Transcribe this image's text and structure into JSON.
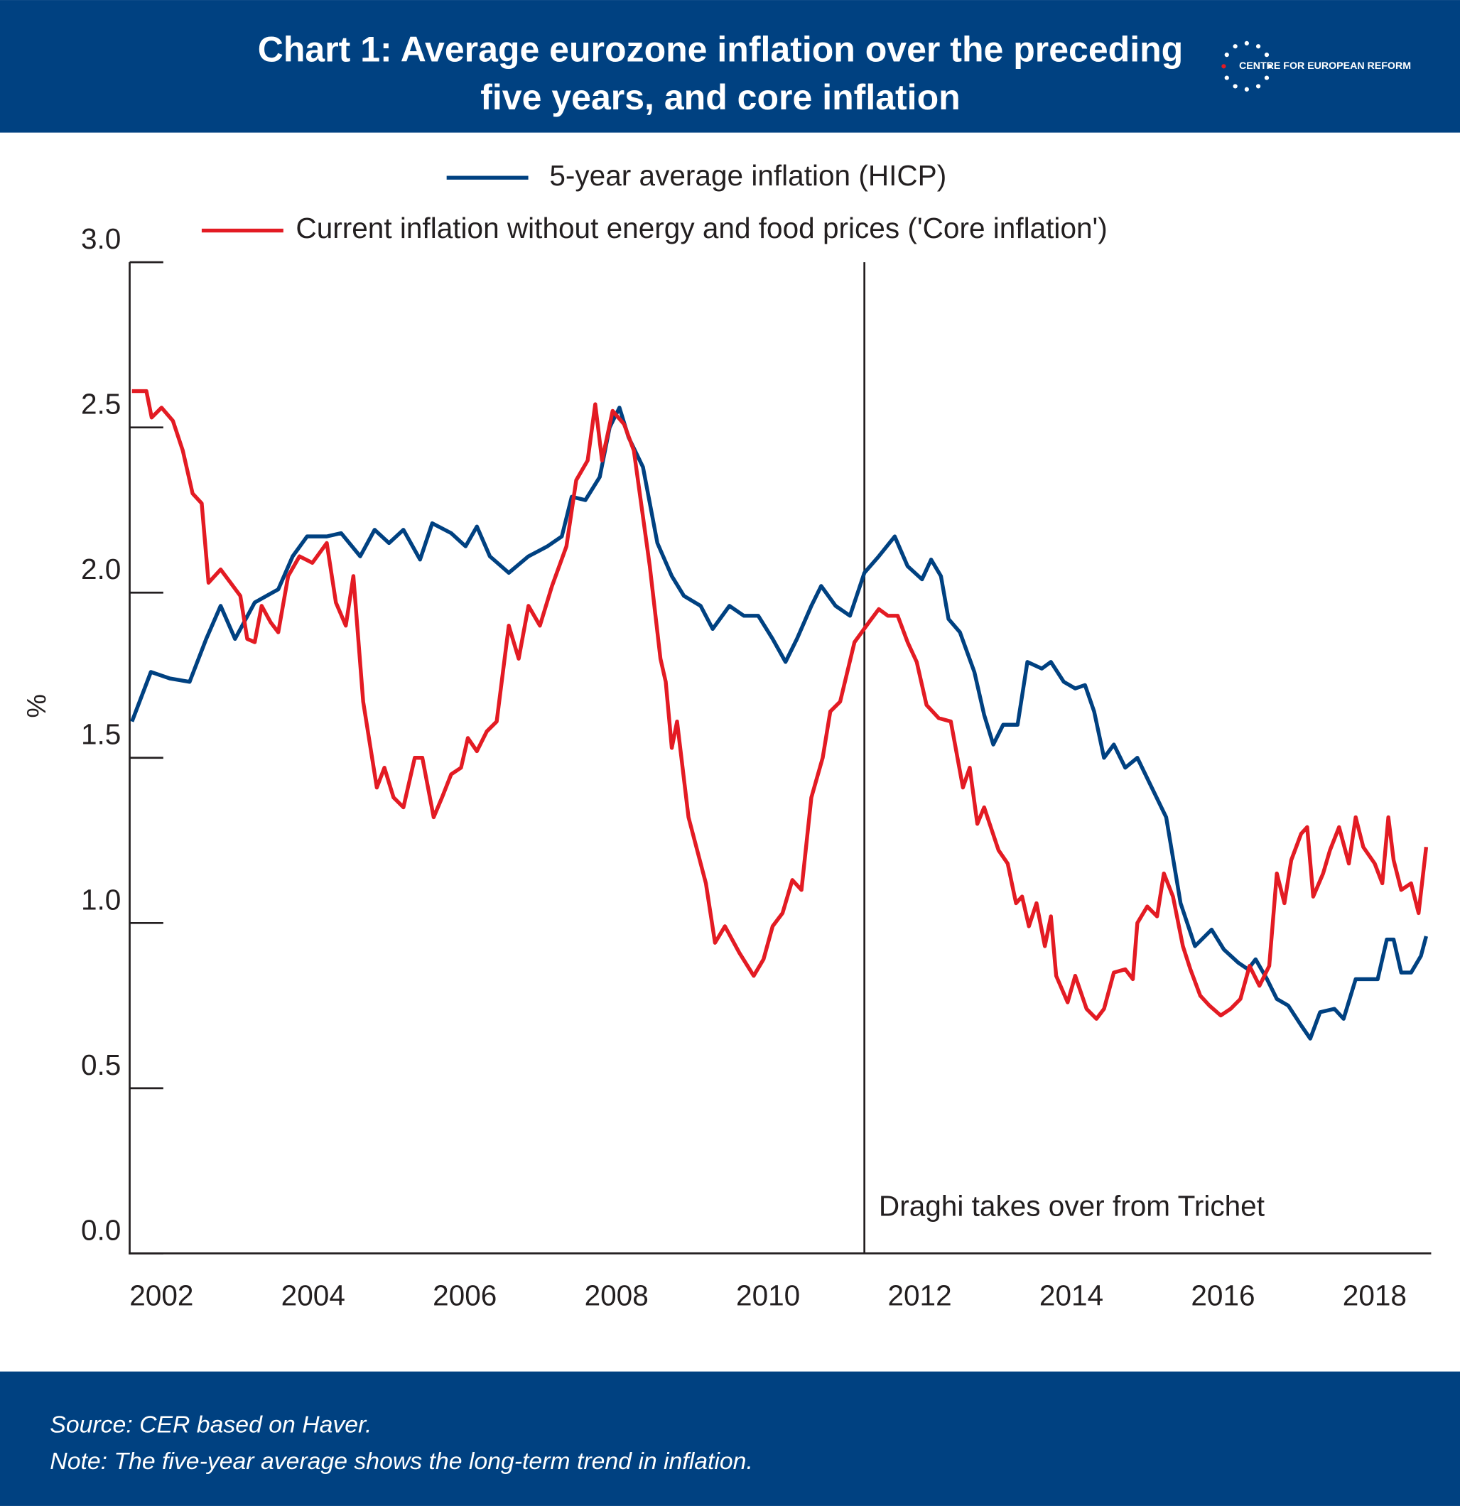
{
  "chart_data": {
    "type": "line",
    "title": [
      "Chart 1: Average eurozone inflation over the preceding",
      "five years, and core inflation"
    ],
    "logo": "CENTRE FOR EUROPEAN REFORM",
    "y_label": "%",
    "source": "Source:  CER based on Haver.",
    "note": "Note: The five-year average shows the long-term trend in inflation.",
    "annotation": {
      "text": "Draghi takes over from Trichet",
      "x": 2011.27
    },
    "xlim": [
      2001.58,
      2018.72
    ],
    "xticks": [
      2002,
      2004,
      2006,
      2008,
      2010,
      2012,
      2014,
      2016,
      2018
    ],
    "ylim": [
      0,
      3
    ],
    "yticks": [
      {
        "value": 0,
        "label": "0.0"
      },
      0.5,
      {
        "value": 1,
        "label": "1.0"
      },
      1.5,
      {
        "value": 2,
        "label": "2.0"
      },
      2.5,
      {
        "value": 3,
        "label": "3.0"
      }
    ],
    "series": [
      {
        "name": "5-year average inflation (HICP)",
        "color": "#004181",
        "x": [
          2001.61,
          2001.86,
          2002.11,
          2002.37,
          2002.59,
          2002.78,
          2002.97,
          2003.23,
          2003.54,
          2003.73,
          2003.92,
          2004.18,
          2004.37,
          2004.62,
          2004.81,
          2005.0,
          2005.19,
          2005.41,
          2005.57,
          2005.82,
          2006.01,
          2006.16,
          2006.33,
          2006.58,
          2006.84,
          2007.09,
          2007.28,
          2007.41,
          2007.59,
          2007.78,
          2007.91,
          2008.04,
          2008.16,
          2008.35,
          2008.54,
          2008.73,
          2008.89,
          2009.11,
          2009.27,
          2009.49,
          2009.68,
          2009.87,
          2010.06,
          2010.23,
          2010.38,
          2010.57,
          2010.7,
          2010.89,
          2011.08,
          2011.27,
          2011.46,
          2011.67,
          2011.84,
          2012.03,
          2012.15,
          2012.28,
          2012.38,
          2012.53,
          2012.72,
          2012.85,
          2012.97,
          2013.1,
          2013.29,
          2013.42,
          2013.61,
          2013.73,
          2013.9,
          2014.05,
          2014.18,
          2014.3,
          2014.43,
          2014.56,
          2014.71,
          2014.87,
          2015.06,
          2015.25,
          2015.44,
          2015.63,
          2015.85,
          2016.01,
          2016.2,
          2016.33,
          2016.43,
          2016.58,
          2016.71,
          2016.86,
          2017.03,
          2017.15,
          2017.28,
          2017.47,
          2017.59,
          2017.75,
          2017.91,
          2018.04,
          2018.16,
          2018.25,
          2018.35,
          2018.48,
          2018.61,
          2018.68
        ],
        "values": [
          1.61,
          1.76,
          1.74,
          1.73,
          1.86,
          1.96,
          1.86,
          1.97,
          2.01,
          2.11,
          2.17,
          2.17,
          2.18,
          2.11,
          2.19,
          2.15,
          2.19,
          2.1,
          2.21,
          2.18,
          2.14,
          2.2,
          2.11,
          2.06,
          2.11,
          2.14,
          2.17,
          2.29,
          2.28,
          2.35,
          2.5,
          2.56,
          2.47,
          2.38,
          2.15,
          2.05,
          1.99,
          1.96,
          1.89,
          1.96,
          1.93,
          1.93,
          1.86,
          1.79,
          1.86,
          1.96,
          2.02,
          1.96,
          1.93,
          2.06,
          2.11,
          2.17,
          2.08,
          2.04,
          2.1,
          2.05,
          1.92,
          1.88,
          1.76,
          1.63,
          1.54,
          1.6,
          1.6,
          1.79,
          1.77,
          1.79,
          1.73,
          1.71,
          1.72,
          1.64,
          1.5,
          1.54,
          1.47,
          1.5,
          1.41,
          1.32,
          1.06,
          0.93,
          0.98,
          0.92,
          0.88,
          0.86,
          0.89,
          0.83,
          0.77,
          0.75,
          0.69,
          0.65,
          0.73,
          0.74,
          0.71,
          0.83,
          0.83,
          0.83,
          0.95,
          0.95,
          0.85,
          0.85,
          0.9,
          0.96
        ]
      },
      {
        "name": "Current inflation without energy and food prices ('Core inflation')",
        "color": "#e31b23",
        "x": [
          2001.61,
          2001.8,
          2001.87,
          2002.0,
          2002.15,
          2002.28,
          2002.41,
          2002.53,
          2002.62,
          2002.78,
          2002.91,
          2003.04,
          2003.13,
          2003.23,
          2003.32,
          2003.44,
          2003.54,
          2003.67,
          2003.82,
          2003.99,
          2004.18,
          2004.3,
          2004.43,
          2004.53,
          2004.66,
          2004.84,
          2004.94,
          2005.06,
          2005.19,
          2005.34,
          2005.44,
          2005.59,
          2005.7,
          2005.82,
          2005.95,
          2006.04,
          2006.16,
          2006.29,
          2006.42,
          2006.58,
          2006.71,
          2006.84,
          2006.99,
          2007.15,
          2007.34,
          2007.47,
          2007.62,
          2007.72,
          2007.81,
          2007.95,
          2008.1,
          2008.23,
          2008.44,
          2008.58,
          2008.65,
          2008.73,
          2008.8,
          2008.95,
          2009.18,
          2009.3,
          2009.43,
          2009.62,
          2009.81,
          2009.94,
          2010.06,
          2010.19,
          2010.32,
          2010.44,
          2010.57,
          2010.72,
          2010.82,
          2010.95,
          2011.14,
          2011.33,
          2011.46,
          2011.58,
          2011.71,
          2011.84,
          2011.96,
          2012.09,
          2012.25,
          2012.41,
          2012.57,
          2012.66,
          2012.76,
          2012.85,
          2013.04,
          2013.16,
          2013.27,
          2013.35,
          2013.44,
          2013.54,
          2013.65,
          2013.73,
          2013.8,
          2013.95,
          2014.05,
          2014.2,
          2014.33,
          2014.43,
          2014.56,
          2014.71,
          2014.81,
          2014.87,
          2015.0,
          2015.13,
          2015.22,
          2015.34,
          2015.47,
          2015.57,
          2015.7,
          2015.82,
          2015.97,
          2016.1,
          2016.23,
          2016.35,
          2016.48,
          2016.61,
          2016.71,
          2016.81,
          2016.9,
          2017.03,
          2017.11,
          2017.19,
          2017.32,
          2017.41,
          2017.53,
          2017.66,
          2017.75,
          2017.85,
          2018.0,
          2018.1,
          2018.18,
          2018.25,
          2018.35,
          2018.48,
          2018.58,
          2018.68
        ],
        "values": [
          2.61,
          2.61,
          2.53,
          2.56,
          2.52,
          2.43,
          2.3,
          2.27,
          2.03,
          2.07,
          2.03,
          1.99,
          1.86,
          1.85,
          1.96,
          1.91,
          1.88,
          2.05,
          2.11,
          2.09,
          2.15,
          1.97,
          1.9,
          2.05,
          1.67,
          1.41,
          1.47,
          1.38,
          1.35,
          1.5,
          1.5,
          1.32,
          1.38,
          1.45,
          1.47,
          1.56,
          1.52,
          1.58,
          1.61,
          1.9,
          1.8,
          1.96,
          1.9,
          2.02,
          2.14,
          2.34,
          2.4,
          2.57,
          2.4,
          2.55,
          2.51,
          2.43,
          2.08,
          1.8,
          1.73,
          1.53,
          1.61,
          1.32,
          1.12,
          0.94,
          0.99,
          0.91,
          0.84,
          0.89,
          0.99,
          1.03,
          1.13,
          1.1,
          1.38,
          1.5,
          1.64,
          1.67,
          1.85,
          1.91,
          1.95,
          1.93,
          1.93,
          1.85,
          1.79,
          1.66,
          1.62,
          1.61,
          1.41,
          1.47,
          1.3,
          1.35,
          1.22,
          1.18,
          1.06,
          1.08,
          0.99,
          1.06,
          0.93,
          1.02,
          0.84,
          0.76,
          0.84,
          0.74,
          0.71,
          0.74,
          0.85,
          0.86,
          0.83,
          1.0,
          1.05,
          1.02,
          1.15,
          1.08,
          0.93,
          0.86,
          0.78,
          0.75,
          0.72,
          0.74,
          0.77,
          0.87,
          0.81,
          0.87,
          1.15,
          1.06,
          1.19,
          1.27,
          1.29,
          1.08,
          1.15,
          1.22,
          1.29,
          1.18,
          1.32,
          1.23,
          1.18,
          1.12,
          1.32,
          1.19,
          1.1,
          1.12,
          1.03,
          1.23
        ]
      }
    ]
  }
}
